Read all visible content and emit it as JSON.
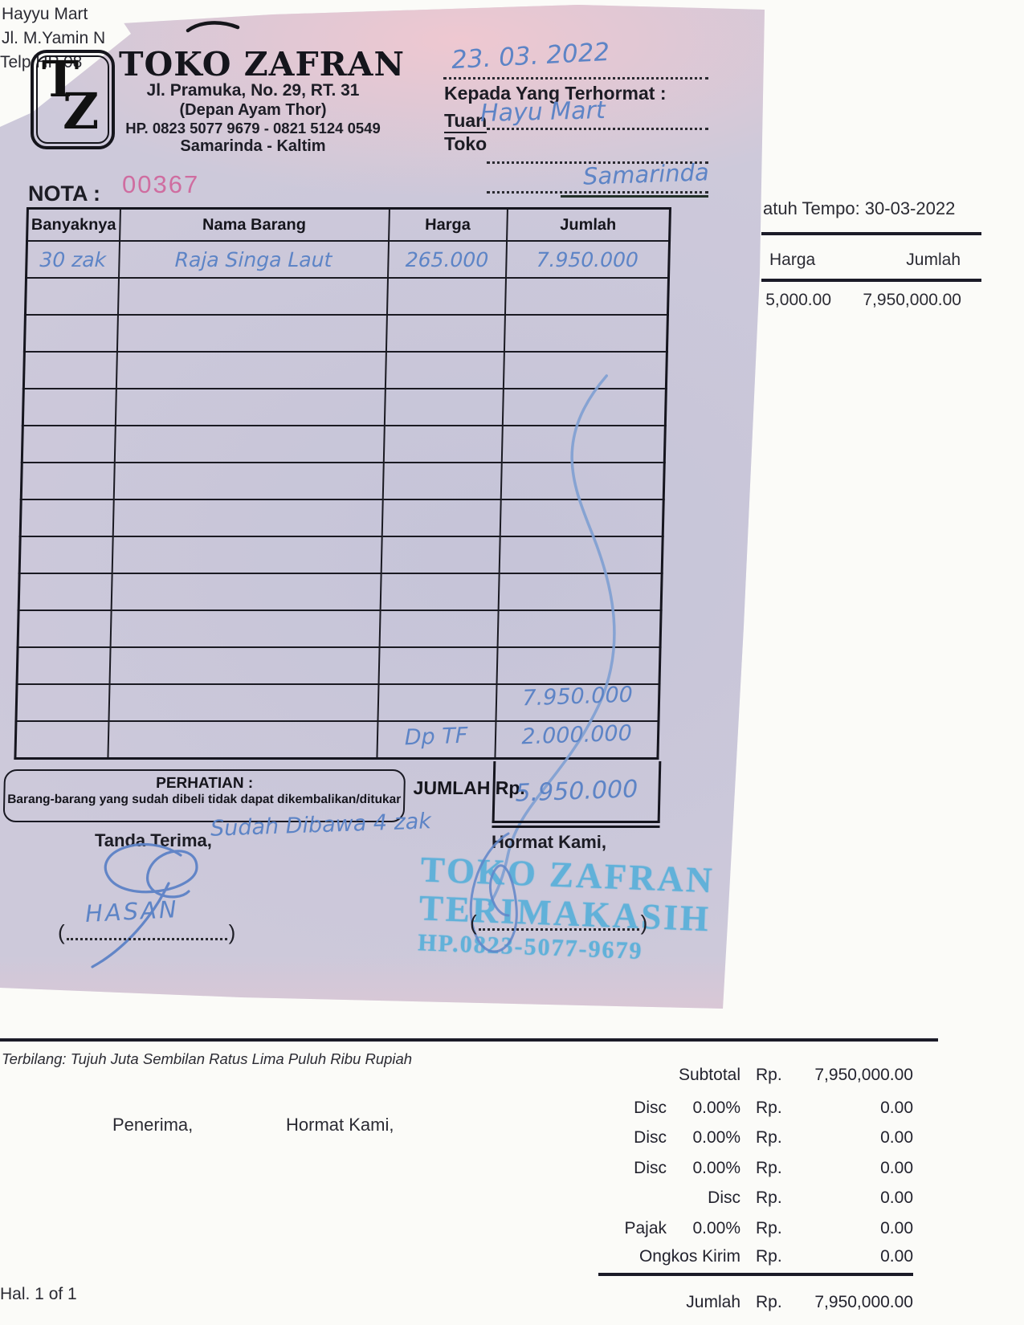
{
  "underlying_invoice": {
    "top_left_lines": [
      "Hayyu Mart",
      "Jl. M.Yamin N",
      "Telp/HP 08"
    ],
    "due_text": "atuh Tempo: 30-03-2022",
    "col_harga": "Harga",
    "col_jumlah": "Jumlah",
    "row_harga": "5,000.00",
    "row_jumlah": "7,950,000.00",
    "terbilang": "Terbilang: Tujuh Juta Sembilan Ratus Lima Puluh Ribu Rupiah",
    "penerima": "Penerima,",
    "hormat_kami": "Hormat Kami,",
    "totals": [
      {
        "label": "Subtotal",
        "pct": "",
        "rp": "Rp.",
        "amount": "7,950,000.00"
      },
      {
        "label": "Disc",
        "pct": "0.00%",
        "rp": "Rp.",
        "amount": "0.00"
      },
      {
        "label": "Disc",
        "pct": "0.00%",
        "rp": "Rp.",
        "amount": "0.00"
      },
      {
        "label": "Disc",
        "pct": "0.00%",
        "rp": "Rp.",
        "amount": "0.00"
      },
      {
        "label": "Disc",
        "pct": "",
        "rp": "Rp.",
        "amount": "0.00"
      },
      {
        "label": "Pajak",
        "pct": "0.00%",
        "rp": "Rp.",
        "amount": "0.00"
      },
      {
        "label": "Ongkos Kirim",
        "pct": "",
        "rp": "Rp.",
        "amount": "0.00"
      }
    ],
    "grand_total": {
      "label": "Jumlah",
      "rp": "Rp.",
      "amount": "7,950,000.00"
    },
    "page_note": "Hal. 1 of 1"
  },
  "nota": {
    "store": {
      "logo_t": "T",
      "logo_z": "Z",
      "name": "TOKO ZAFRAN",
      "address1": "Jl. Pramuka, No. 29, RT. 31",
      "address2": "(Depan Ayam Thor)",
      "phone": "HP. 0823 5077 9679 - 0821 5124 0549",
      "city": "Samarinda - Kaltim"
    },
    "date_hand": "23. 03. 2022",
    "kepada_label": "Kepada Yang Terhormat :",
    "tuan_label": "Tuan",
    "toko_label": "Toko",
    "recipient_hand": "Hayu Mart",
    "city_hand": "Samarinda",
    "nota_label": "NOTA :",
    "nota_number": "00367",
    "nota_number_color": "#cf6da0",
    "pen_blue": "#5d84c6",
    "stamp_blue": "#4fadd9",
    "table": {
      "headers": [
        "Banyaknya",
        "Nama Barang",
        "Harga",
        "Jumlah"
      ],
      "rows": [
        {
          "banyaknya": "30 zak",
          "nama": "Raja Singa Laut",
          "harga": "265.000",
          "jumlah": "7.950.000"
        }
      ],
      "empty_row_count": 13,
      "total_hand": "7.950.000",
      "dp_label_hand": "Dp TF",
      "dp_amount_hand": "2.000.000",
      "sisa_hand": "5.950.000"
    },
    "perhatian_title": "PERHATIAN :",
    "perhatian_body": "Barang-barang yang sudah dibeli tidak dapat dikembalikan/ditukar",
    "jumlah_label": "JUMLAH Rp.",
    "tanda_terima": "Tanda Terima,",
    "note_hand": "Sudah Dibawa 4 zak",
    "signer_hand": "HASAN",
    "hormat_kami": "Hormat Kami,",
    "stamp": {
      "line1": "TOKO ZAFRAN",
      "line2": "TERIMAKASIH",
      "line3": "HP.0823-5077-9679"
    }
  }
}
